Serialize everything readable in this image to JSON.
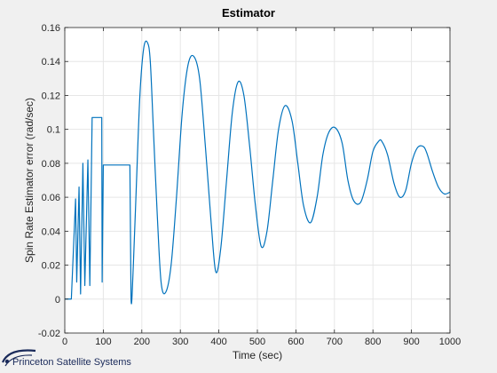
{
  "chart_data": {
    "type": "line",
    "title": "Estimator",
    "xlabel": "Time (sec)",
    "ylabel": "Spin Rate Estimator error (rad/sec)",
    "xlim": [
      0,
      1000
    ],
    "ylim": [
      -0.02,
      0.16
    ],
    "xticks": [
      0,
      100,
      200,
      300,
      400,
      500,
      600,
      700,
      800,
      900,
      1000
    ],
    "yticks": [
      -0.02,
      0,
      0.02,
      0.04,
      0.06,
      0.08,
      0.1,
      0.12,
      0.14,
      0.16
    ],
    "xtick_labels": [
      "0",
      "100",
      "200",
      "300",
      "400",
      "500",
      "600",
      "700",
      "800",
      "900",
      "1000"
    ],
    "ytick_labels": [
      "-0.02",
      "0",
      "0.02",
      "0.04",
      "0.06",
      "0.08",
      "0.1",
      "0.12",
      "0.14",
      "0.16"
    ],
    "grid": true,
    "series_color": "#0072bd",
    "series": [
      {
        "x": [
          0,
          10,
          17,
          28,
          31,
          37,
          41,
          47,
          52,
          60,
          65,
          71,
          75,
          85,
          90,
          96,
          97,
          100,
          100.5,
          103,
          112,
          168,
          169,
          172,
          178,
          186,
          195,
          205,
          215,
          222,
          230,
          240,
          250,
          262,
          276,
          290,
          305,
          320,
          335,
          350,
          365,
          380,
          392,
          405,
          420,
          435,
          450,
          465,
          480,
          495,
          510,
          525,
          540,
          555,
          572,
          590,
          605,
          620,
          638,
          655,
          670,
          685,
          702,
          720,
          735,
          750,
          768,
          785,
          800,
          815,
          823,
          838,
          855,
          870,
          885,
          900,
          915,
          930,
          940,
          955,
          970,
          985,
          1000
        ],
        "y": [
          0,
          0,
          0,
          0.059,
          0.01,
          0.066,
          0.003,
          0.08,
          0.008,
          0.082,
          0.008,
          0.107,
          0.107,
          0.107,
          0.107,
          0.107,
          0.01,
          0.079,
          0.079,
          0.079,
          0.079,
          0.079,
          0.079,
          0,
          0.02,
          0.068,
          0.12,
          0.148,
          0.151,
          0.14,
          0.1,
          0.05,
          0.01,
          0.004,
          0.02,
          0.06,
          0.11,
          0.138,
          0.143,
          0.13,
          0.09,
          0.045,
          0.016,
          0.03,
          0.07,
          0.11,
          0.128,
          0.12,
          0.09,
          0.055,
          0.031,
          0.04,
          0.07,
          0.1,
          0.114,
          0.105,
          0.08,
          0.055,
          0.045,
          0.06,
          0.085,
          0.098,
          0.101,
          0.092,
          0.07,
          0.058,
          0.057,
          0.07,
          0.087,
          0.093,
          0.093,
          0.085,
          0.068,
          0.06,
          0.064,
          0.08,
          0.089,
          0.09,
          0.086,
          0.075,
          0.066,
          0.062,
          0.063
        ]
      }
    ]
  },
  "logo": {
    "text": "Princeton Satellite Systems"
  }
}
